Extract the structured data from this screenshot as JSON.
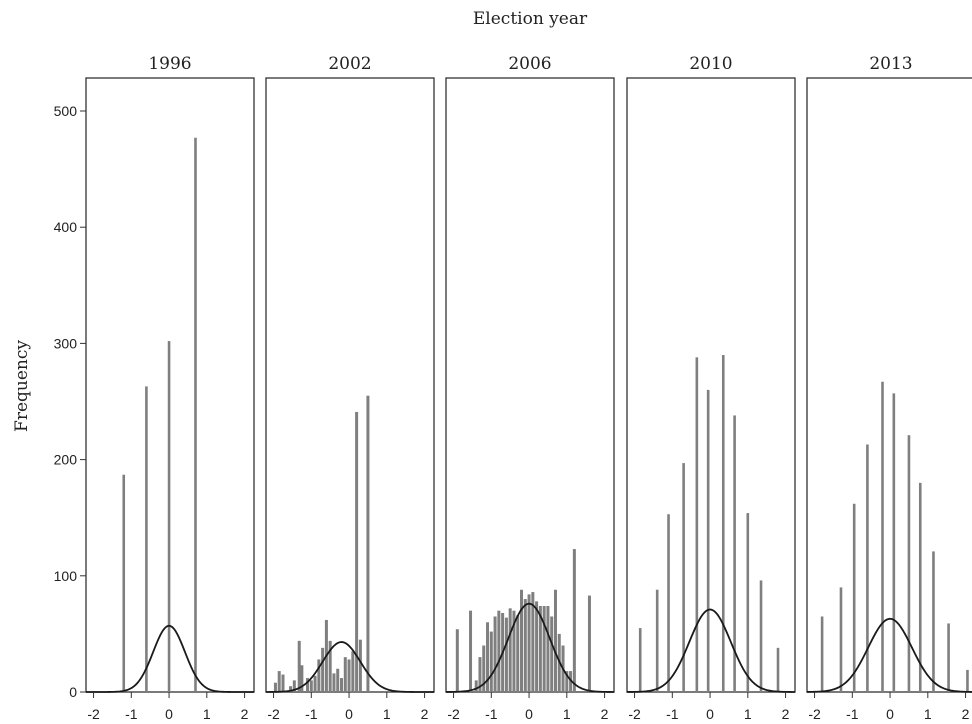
{
  "chart_data": {
    "type": "bar",
    "title": "Election year",
    "ylabel": "Frequency",
    "xlabel": "",
    "ylim": [
      0,
      520
    ],
    "xlim": [
      -2.2,
      2.25
    ],
    "yticks": [
      0,
      100,
      200,
      300,
      400,
      500
    ],
    "xticks": [
      -2,
      -1,
      0,
      1,
      2
    ],
    "bar_color": "#7f7f7f",
    "curve_color": "#1a1a1a",
    "panels": [
      {
        "year": "1996",
        "bars": [
          {
            "x": -1.2,
            "y": 187
          },
          {
            "x": -0.6,
            "y": 263
          },
          {
            "x": 0.0,
            "y": 302
          },
          {
            "x": 0.7,
            "y": 477
          }
        ],
        "normal": {
          "mean": 0.0,
          "peak": 57,
          "sd": 0.42
        }
      },
      {
        "year": "2002",
        "bars": [
          {
            "x": -1.95,
            "y": 8
          },
          {
            "x": -1.85,
            "y": 18
          },
          {
            "x": -1.75,
            "y": 15
          },
          {
            "x": -1.55,
            "y": 5
          },
          {
            "x": -1.45,
            "y": 10
          },
          {
            "x": -1.32,
            "y": 44
          },
          {
            "x": -1.25,
            "y": 23
          },
          {
            "x": -1.1,
            "y": 12
          },
          {
            "x": -1.0,
            "y": 10
          },
          {
            "x": -0.9,
            "y": 14
          },
          {
            "x": -0.8,
            "y": 28
          },
          {
            "x": -0.7,
            "y": 38
          },
          {
            "x": -0.6,
            "y": 62
          },
          {
            "x": -0.5,
            "y": 44
          },
          {
            "x": -0.4,
            "y": 16
          },
          {
            "x": -0.3,
            "y": 20
          },
          {
            "x": -0.2,
            "y": 12
          },
          {
            "x": -0.1,
            "y": 30
          },
          {
            "x": 0.0,
            "y": 28
          },
          {
            "x": 0.1,
            "y": 35
          },
          {
            "x": 0.2,
            "y": 241
          },
          {
            "x": 0.3,
            "y": 45
          },
          {
            "x": 0.5,
            "y": 255
          }
        ],
        "normal": {
          "mean": -0.2,
          "peak": 43,
          "sd": 0.5
        }
      },
      {
        "year": "2006",
        "bars": [
          {
            "x": -1.9,
            "y": 54
          },
          {
            "x": -1.55,
            "y": 70
          },
          {
            "x": -1.4,
            "y": 10
          },
          {
            "x": -1.3,
            "y": 30
          },
          {
            "x": -1.2,
            "y": 40
          },
          {
            "x": -1.1,
            "y": 60
          },
          {
            "x": -1.0,
            "y": 52
          },
          {
            "x": -0.9,
            "y": 65
          },
          {
            "x": -0.8,
            "y": 70
          },
          {
            "x": -0.7,
            "y": 68
          },
          {
            "x": -0.6,
            "y": 64
          },
          {
            "x": -0.5,
            "y": 72
          },
          {
            "x": -0.4,
            "y": 70
          },
          {
            "x": -0.3,
            "y": 66
          },
          {
            "x": -0.2,
            "y": 88
          },
          {
            "x": -0.1,
            "y": 80
          },
          {
            "x": 0.0,
            "y": 84
          },
          {
            "x": 0.1,
            "y": 86
          },
          {
            "x": 0.2,
            "y": 78
          },
          {
            "x": 0.3,
            "y": 74
          },
          {
            "x": 0.4,
            "y": 74
          },
          {
            "x": 0.5,
            "y": 74
          },
          {
            "x": 0.6,
            "y": 65
          },
          {
            "x": 0.7,
            "y": 88
          },
          {
            "x": 0.8,
            "y": 50
          },
          {
            "x": 0.9,
            "y": 40
          },
          {
            "x": 1.0,
            "y": 18
          },
          {
            "x": 1.1,
            "y": 18
          },
          {
            "x": 1.2,
            "y": 123
          },
          {
            "x": 1.6,
            "y": 83
          }
        ],
        "normal": {
          "mean": 0.0,
          "peak": 76,
          "sd": 0.55
        }
      },
      {
        "year": "2010",
        "bars": [
          {
            "x": -1.85,
            "y": 55
          },
          {
            "x": -1.4,
            "y": 88
          },
          {
            "x": -1.1,
            "y": 153
          },
          {
            "x": -0.7,
            "y": 197
          },
          {
            "x": -0.35,
            "y": 288
          },
          {
            "x": -0.05,
            "y": 260
          },
          {
            "x": 0.35,
            "y": 290
          },
          {
            "x": 0.65,
            "y": 238
          },
          {
            "x": 1.0,
            "y": 154
          },
          {
            "x": 1.35,
            "y": 96
          },
          {
            "x": 1.8,
            "y": 38
          }
        ],
        "normal": {
          "mean": 0.0,
          "peak": 71,
          "sd": 0.55
        }
      },
      {
        "year": "2013",
        "bars": [
          {
            "x": -1.8,
            "y": 65
          },
          {
            "x": -1.3,
            "y": 90
          },
          {
            "x": -0.95,
            "y": 162
          },
          {
            "x": -0.6,
            "y": 213
          },
          {
            "x": -0.2,
            "y": 267
          },
          {
            "x": 0.1,
            "y": 257
          },
          {
            "x": 0.5,
            "y": 221
          },
          {
            "x": 0.8,
            "y": 180
          },
          {
            "x": 1.15,
            "y": 121
          },
          {
            "x": 1.55,
            "y": 59
          },
          {
            "x": 2.05,
            "y": 19
          }
        ],
        "normal": {
          "mean": 0.0,
          "peak": 63,
          "sd": 0.58
        }
      }
    ]
  }
}
